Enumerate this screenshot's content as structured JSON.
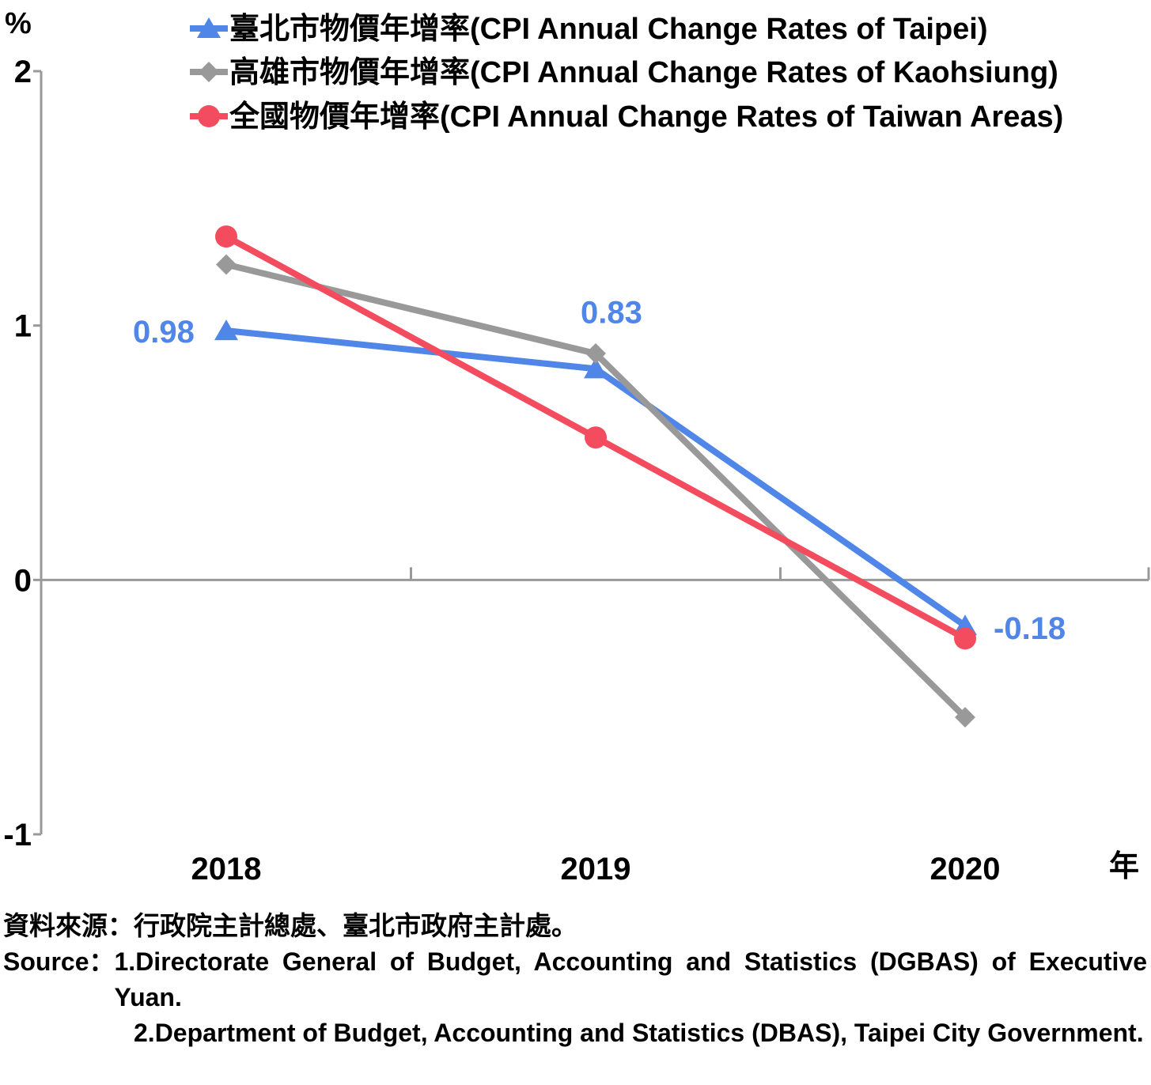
{
  "chart_data": {
    "type": "line",
    "y_unit": "%",
    "x_unit": "年",
    "categories": [
      "2018",
      "2019",
      "2020"
    ],
    "ylim": [
      -1,
      2
    ],
    "yticks": [
      -1,
      0,
      1,
      2
    ],
    "grid": false,
    "legend_position": "top-right",
    "series": [
      {
        "name": "臺北市物價年增率(CPI Annual Change Rates of Taipei)",
        "values": [
          0.98,
          0.83,
          -0.18
        ],
        "color": "#4F86E8",
        "marker": "triangle",
        "labels": [
          "0.98",
          "0.83",
          "-0.18"
        ]
      },
      {
        "name": "高雄市物價年增率(CPI Annual Change Rates of Kaohsiung)",
        "values": [
          1.24,
          0.89,
          -0.54
        ],
        "color": "#999999",
        "marker": "diamond"
      },
      {
        "name": "全國物價年增率(CPI Annual Change Rates of Taiwan Areas)",
        "values": [
          1.35,
          0.56,
          -0.23
        ],
        "color": "#F24C5E",
        "marker": "circle"
      }
    ]
  },
  "source": {
    "cn": "資料來源：行政院主計總處、臺北市政府主計處。",
    "en_lead": "Source：",
    "en_item1": "1.Directorate General of Budget, Accounting and Statistics (DGBAS) of Executive Yuan.",
    "en_item2": "2.Department of Budget, Accounting and Statistics (DBAS), Taipei City Government."
  }
}
